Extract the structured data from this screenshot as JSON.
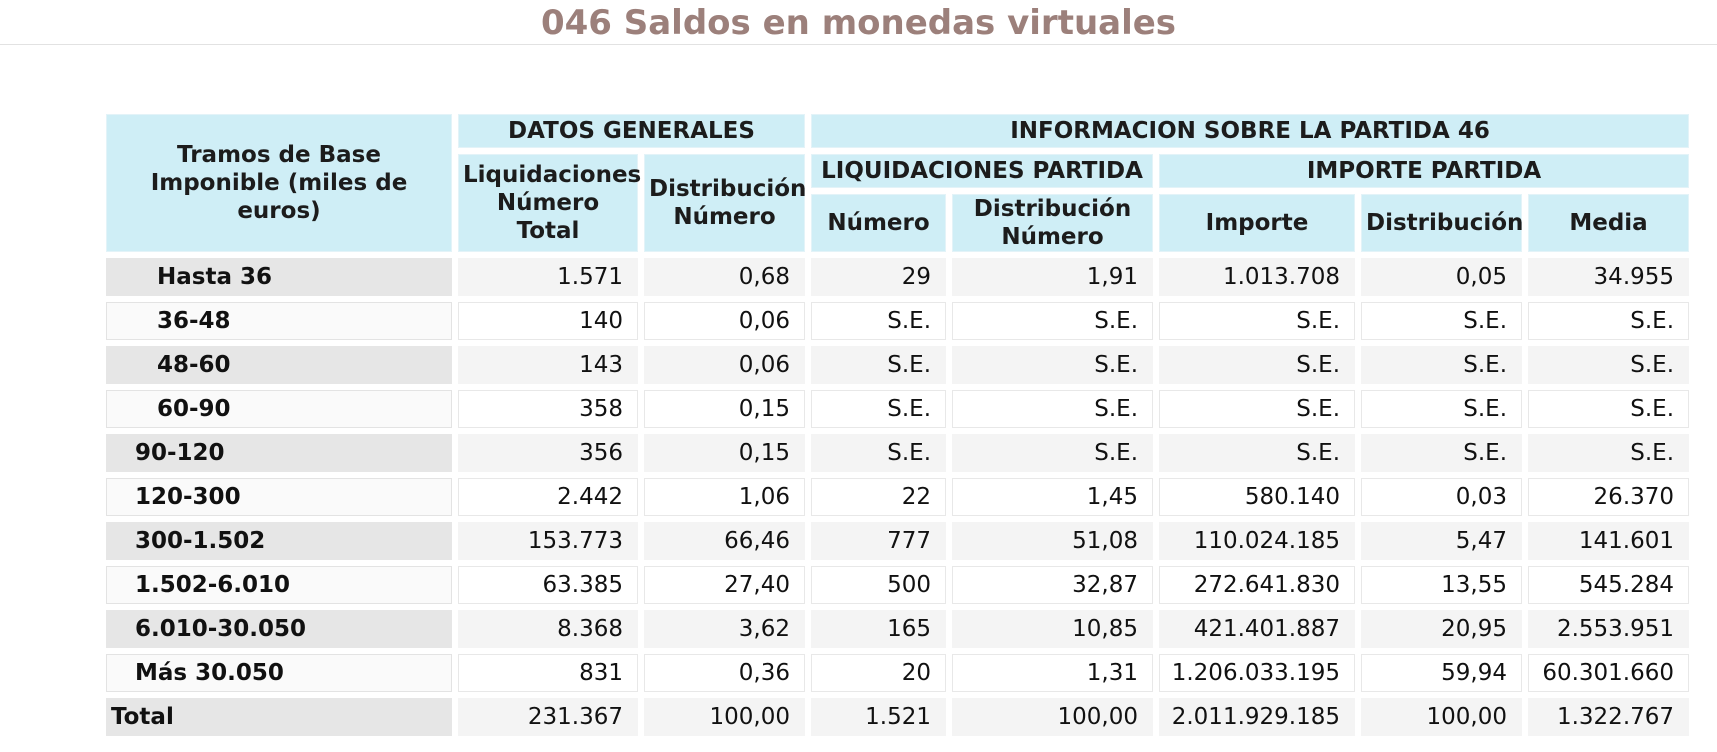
{
  "title": "046 Saldos en monedas virtuales",
  "header": {
    "tramos": "Tramos de Base Imponible (miles de euros)",
    "datos_generales": "DATOS GENERALES",
    "informacion": "INFORMACION SOBRE LA PARTIDA 46",
    "liq_numero_total": "Liquidaciones Número Total",
    "distribucion_numero": "Distribución Número",
    "liquidaciones_partida": "LIQUIDACIONES PARTIDA",
    "importe_partida": "IMPORTE PARTIDA",
    "numero": "Número",
    "distribucion_numero_2": "Distribución Número",
    "importe": "Importe",
    "distribucion": "Distribución",
    "media": "Media"
  },
  "rows": [
    {
      "label": "Hasta 36",
      "indent": 2,
      "cells": [
        "1.571",
        "0,68",
        "29",
        "1,91",
        "1.013.708",
        "0,05",
        "34.955"
      ]
    },
    {
      "label": "36-48",
      "indent": 2,
      "cells": [
        "140",
        "0,06",
        "S.E.",
        "S.E.",
        "S.E.",
        "S.E.",
        "S.E."
      ]
    },
    {
      "label": "48-60",
      "indent": 2,
      "cells": [
        "143",
        "0,06",
        "S.E.",
        "S.E.",
        "S.E.",
        "S.E.",
        "S.E."
      ]
    },
    {
      "label": "60-90",
      "indent": 2,
      "cells": [
        "358",
        "0,15",
        "S.E.",
        "S.E.",
        "S.E.",
        "S.E.",
        "S.E."
      ]
    },
    {
      "label": "90-120",
      "indent": 1,
      "cells": [
        "356",
        "0,15",
        "S.E.",
        "S.E.",
        "S.E.",
        "S.E.",
        "S.E."
      ]
    },
    {
      "label": "120-300",
      "indent": 1,
      "cells": [
        "2.442",
        "1,06",
        "22",
        "1,45",
        "580.140",
        "0,03",
        "26.370"
      ]
    },
    {
      "label": "300-1.502",
      "indent": 1,
      "cells": [
        "153.773",
        "66,46",
        "777",
        "51,08",
        "110.024.185",
        "5,47",
        "141.601"
      ]
    },
    {
      "label": "1.502-6.010",
      "indent": 1,
      "cells": [
        "63.385",
        "27,40",
        "500",
        "32,87",
        "272.641.830",
        "13,55",
        "545.284"
      ]
    },
    {
      "label": "6.010-30.050",
      "indent": 1,
      "cells": [
        "8.368",
        "3,62",
        "165",
        "10,85",
        "421.401.887",
        "20,95",
        "2.553.951"
      ]
    },
    {
      "label": "Más 30.050",
      "indent": 1,
      "cells": [
        "831",
        "0,36",
        "20",
        "1,31",
        "1.206.033.195",
        "59,94",
        "60.301.660"
      ]
    },
    {
      "label": "Total",
      "indent": 0,
      "cells": [
        "231.367",
        "100,00",
        "1.521",
        "100,00",
        "2.011.929.185",
        "100,00",
        "1.322.767"
      ]
    }
  ]
}
